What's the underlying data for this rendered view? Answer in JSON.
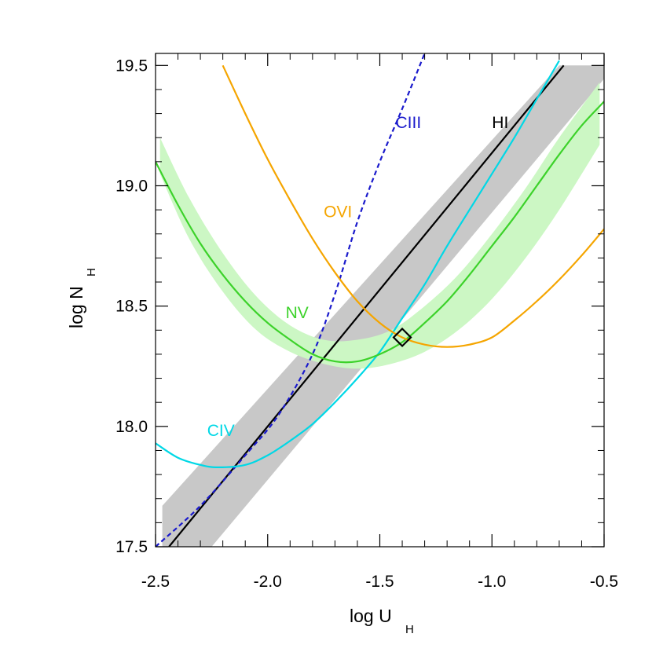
{
  "chart_data": {
    "type": "line",
    "xlabel": "log U",
    "xlabel_sub": "H",
    "ylabel": "log N",
    "ylabel_sub": "H",
    "xlim": [
      -2.5,
      -0.5
    ],
    "ylim": [
      17.5,
      19.55
    ],
    "x_ticks": [
      -2.5,
      -2.0,
      -1.5,
      -1.0,
      -0.5
    ],
    "x_tick_labels": [
      "-2.5",
      "-2.0",
      "-1.5",
      "-1.0",
      "-0.5"
    ],
    "y_ticks": [
      17.5,
      18.0,
      18.5,
      19.0,
      19.5
    ],
    "y_tick_labels": [
      "17.5",
      "18.0",
      "18.5",
      "19.0",
      "19.5"
    ],
    "grid": false,
    "bands": [
      {
        "name": "HI band",
        "color": "#c8c8c8",
        "polygon": [
          [
            -2.47,
            17.5
          ],
          [
            -2.25,
            17.5
          ],
          [
            -0.45,
            19.5
          ],
          [
            -0.7,
            19.5
          ],
          [
            -2.47,
            17.67
          ]
        ]
      },
      {
        "name": "NV band",
        "color": "#ccf7c4",
        "upper": [
          [
            -2.48,
            19.2
          ],
          [
            -2.35,
            18.95
          ],
          [
            -2.2,
            18.72
          ],
          [
            -2.05,
            18.54
          ],
          [
            -1.9,
            18.42
          ],
          [
            -1.75,
            18.36
          ],
          [
            -1.6,
            18.36
          ],
          [
            -1.45,
            18.4
          ],
          [
            -1.3,
            18.5
          ],
          [
            -1.15,
            18.63
          ],
          [
            -1.0,
            18.8
          ],
          [
            -0.85,
            18.99
          ],
          [
            -0.7,
            19.2
          ],
          [
            -0.52,
            19.43
          ]
        ],
        "lower": [
          [
            -2.48,
            19.05
          ],
          [
            -2.35,
            18.78
          ],
          [
            -2.2,
            18.56
          ],
          [
            -2.05,
            18.4
          ],
          [
            -1.9,
            18.31
          ],
          [
            -1.75,
            18.26
          ],
          [
            -1.6,
            18.24
          ],
          [
            -1.45,
            18.26
          ],
          [
            -1.3,
            18.31
          ],
          [
            -1.15,
            18.4
          ],
          [
            -1.0,
            18.53
          ],
          [
            -0.85,
            18.7
          ],
          [
            -0.7,
            18.9
          ],
          [
            -0.52,
            19.17
          ]
        ]
      }
    ],
    "series": [
      {
        "name": "HI",
        "color": "#000000",
        "dash": "solid",
        "x": [
          -2.44,
          -0.68
        ],
        "y": [
          17.5,
          19.5
        ]
      },
      {
        "name": "CIII",
        "color": "#1a1acc",
        "dash": "dashed",
        "x": [
          -2.5,
          -2.3,
          -2.1,
          -1.95,
          -1.8,
          -1.7,
          -1.6,
          -1.5,
          -1.4,
          -1.3
        ],
        "y": [
          17.5,
          17.67,
          17.88,
          18.05,
          18.3,
          18.55,
          18.85,
          19.1,
          19.32,
          19.55
        ]
      },
      {
        "name": "CIV",
        "color": "#00d8e6",
        "dash": "solid",
        "x": [
          -2.5,
          -2.4,
          -2.3,
          -2.22,
          -2.1,
          -2.0,
          -1.9,
          -1.8,
          -1.7,
          -1.6,
          -1.5,
          -1.4,
          -1.3,
          -1.2,
          -1.1,
          -1.0,
          -0.9,
          -0.8,
          -0.7
        ],
        "y": [
          17.93,
          17.87,
          17.84,
          17.83,
          17.84,
          17.88,
          17.94,
          18.01,
          18.1,
          18.2,
          18.31,
          18.45,
          18.59,
          18.75,
          18.9,
          19.05,
          19.2,
          19.36,
          19.52
        ]
      },
      {
        "name": "NV",
        "color": "#3cd22a",
        "dash": "solid",
        "x": [
          -2.5,
          -2.4,
          -2.3,
          -2.2,
          -2.1,
          -2.0,
          -1.9,
          -1.8,
          -1.7,
          -1.6,
          -1.5,
          -1.4,
          -1.3,
          -1.2,
          -1.1,
          -1.0,
          -0.9,
          -0.8,
          -0.7,
          -0.6,
          -0.5
        ],
        "y": [
          19.1,
          18.92,
          18.76,
          18.63,
          18.52,
          18.43,
          18.36,
          18.3,
          18.27,
          18.27,
          18.3,
          18.35,
          18.43,
          18.52,
          18.63,
          18.75,
          18.87,
          19.0,
          19.13,
          19.25,
          19.35
        ]
      },
      {
        "name": "OVI",
        "color": "#f5a500",
        "dash": "solid",
        "x": [
          -2.2,
          -2.1,
          -2.0,
          -1.9,
          -1.8,
          -1.7,
          -1.6,
          -1.5,
          -1.4,
          -1.3,
          -1.2,
          -1.1,
          -1.0,
          -0.9,
          -0.8,
          -0.7,
          -0.6,
          -0.5
        ],
        "y": [
          19.5,
          19.3,
          19.11,
          18.94,
          18.78,
          18.64,
          18.52,
          18.43,
          18.37,
          18.34,
          18.33,
          18.34,
          18.37,
          18.44,
          18.52,
          18.61,
          18.71,
          18.82
        ]
      }
    ],
    "labels": [
      {
        "name": "CIII",
        "text": "CIII",
        "color": "#1a1acc",
        "x": -1.43,
        "y": 19.24
      },
      {
        "name": "HI",
        "text": "HI",
        "color": "#000000",
        "x": -1.0,
        "y": 19.24
      },
      {
        "name": "OVI",
        "text": "OVI",
        "color": "#f5a500",
        "x": -1.75,
        "y": 18.87
      },
      {
        "name": "NV",
        "text": "NV",
        "color": "#3cd22a",
        "x": -1.92,
        "y": 18.45
      },
      {
        "name": "CIV",
        "text": "CIV",
        "color": "#00d8e6",
        "x": -2.27,
        "y": 17.96
      }
    ],
    "marker": {
      "name": "solution",
      "shape": "diamond",
      "color": "#000000",
      "x": -1.4,
      "y": 18.37
    }
  }
}
